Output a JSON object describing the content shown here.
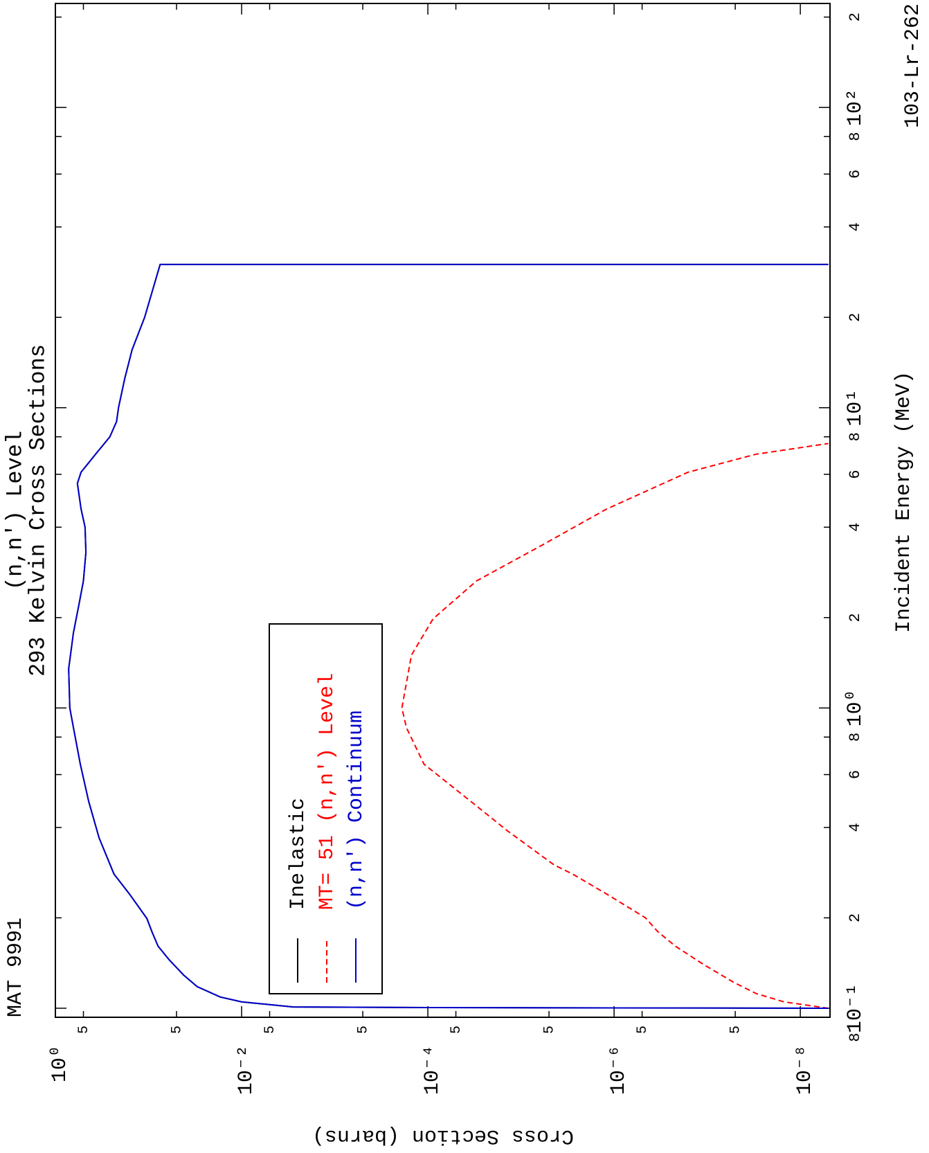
{
  "chart_data": {
    "type": "line",
    "title": "(n,n') Level",
    "subtitle": "293 Kelvin Cross Sections",
    "material": "MAT 9991",
    "isotope": "103-Lr-262",
    "xlabel": "Incident Energy (MeV)",
    "ylabel": "Cross Section (barns)",
    "xscale": "log",
    "yscale": "log",
    "xlim": [
      0.0933,
      222
    ],
    "ylim": [
      4.8e-09,
      1
    ],
    "xticks": [
      {
        "value": 0.08,
        "label": "8"
      },
      {
        "value": 0.1,
        "label": "10⁻¹"
      },
      {
        "value": 0.2,
        "label": "2"
      },
      {
        "value": 0.4,
        "label": "4"
      },
      {
        "value": 0.6,
        "label": "6"
      },
      {
        "value": 0.8,
        "label": "8"
      },
      {
        "value": 1,
        "label": "10⁰"
      },
      2,
      4,
      6,
      8,
      {
        "value": 10,
        "label": "10¹"
      },
      {
        "value": 20,
        "label": "2"
      },
      {
        "value": 40,
        "label": "4"
      },
      {
        "value": 60,
        "label": "6"
      },
      {
        "value": 80,
        "label": "8"
      },
      {
        "value": 100,
        "label": "10²"
      },
      {
        "value": 200,
        "label": "2"
      }
    ],
    "yticks": [
      {
        "value": 1,
        "label": "10⁰"
      },
      {
        "value": 0.5,
        "label": "5"
      },
      {
        "value": 0.05,
        "label": "5"
      },
      {
        "value": 0.01,
        "label": "10⁻²"
      },
      {
        "value": 0.005,
        "label": "5"
      },
      {
        "value": 0.0005,
        "label": "5"
      },
      {
        "value": 0.0001,
        "label": "10⁻⁴"
      },
      {
        "value": 5e-05,
        "label": "5"
      },
      {
        "value": 5e-06,
        "label": "5"
      },
      {
        "value": 1e-06,
        "label": "10⁻⁶"
      },
      {
        "value": 5e-07,
        "label": "5"
      },
      {
        "value": 5e-08,
        "label": "5"
      },
      {
        "value": 1e-08,
        "label": "10⁻⁸"
      }
    ],
    "legend": "top-left",
    "series": [
      {
        "name": "Inelastic",
        "color": "#000000",
        "dash": "solid",
        "x": [
          0.1,
          0.1005,
          0.101,
          0.105,
          0.109,
          0.118,
          0.129,
          0.145,
          0.161,
          0.18,
          0.199,
          0.24,
          0.28,
          0.37,
          0.49,
          0.65,
          0.86,
          1.0,
          1.35,
          1.78,
          2.2,
          2.65,
          3.3,
          4.0,
          4.6,
          5.6,
          6.1,
          7.0,
          8.0,
          9.0,
          10,
          12.5,
          15.6,
          20,
          30,
          30
        ],
        "values": [
          5e-09,
          0.0001,
          0.0028,
          0.01,
          0.017,
          0.03,
          0.042,
          0.06,
          0.079,
          0.092,
          0.104,
          0.16,
          0.235,
          0.34,
          0.44,
          0.54,
          0.64,
          0.7,
          0.72,
          0.64,
          0.56,
          0.5,
          0.47,
          0.48,
          0.53,
          0.58,
          0.53,
          0.37,
          0.26,
          0.22,
          0.21,
          0.18,
          0.15,
          0.11,
          0.075,
          5e-09
        ]
      },
      {
        "name": "MT= 51 (n,n') Level",
        "color": "#ff0000",
        "dash": "dashed",
        "x": [
          0.1,
          0.105,
          0.112,
          0.122,
          0.14,
          0.161,
          0.18,
          0.2,
          0.24,
          0.28,
          0.3,
          0.39,
          0.49,
          0.65,
          0.86,
          1.0,
          1.5,
          1.98,
          2.65,
          3.5,
          4.6,
          6.1,
          7.0,
          7.6
        ],
        "values": [
          5e-09,
          1.5e-08,
          3e-08,
          5.2e-08,
          1.1e-07,
          2.2e-07,
          3.4e-07,
          4.6e-07,
          1.2e-06,
          2.8e-06,
          4.4e-06,
          1.4e-05,
          3.5e-05,
          0.00011,
          0.00017,
          0.00019,
          0.00015,
          8.8e-05,
          3e-05,
          5.8e-06,
          1.2e-06,
          1.6e-07,
          3e-08,
          5e-09
        ]
      },
      {
        "name": "(n,n') Continuum",
        "color": "#0000cc",
        "dash": "solid",
        "x": [
          0.1,
          0.1005,
          0.101,
          0.105,
          0.109,
          0.118,
          0.129,
          0.145,
          0.161,
          0.18,
          0.199,
          0.24,
          0.28,
          0.37,
          0.49,
          0.65,
          0.86,
          1.0,
          1.35,
          1.78,
          2.2,
          2.65,
          3.3,
          4.0,
          4.6,
          5.6,
          6.1,
          7.0,
          8.0,
          9.0,
          10,
          12.5,
          15.6,
          20,
          30,
          30
        ],
        "values": [
          5e-09,
          0.0001,
          0.0028,
          0.01,
          0.017,
          0.03,
          0.042,
          0.06,
          0.079,
          0.092,
          0.104,
          0.16,
          0.235,
          0.34,
          0.44,
          0.54,
          0.64,
          0.7,
          0.72,
          0.64,
          0.56,
          0.5,
          0.47,
          0.48,
          0.53,
          0.58,
          0.53,
          0.37,
          0.26,
          0.22,
          0.21,
          0.18,
          0.15,
          0.11,
          0.075,
          5e-09
        ]
      }
    ]
  }
}
